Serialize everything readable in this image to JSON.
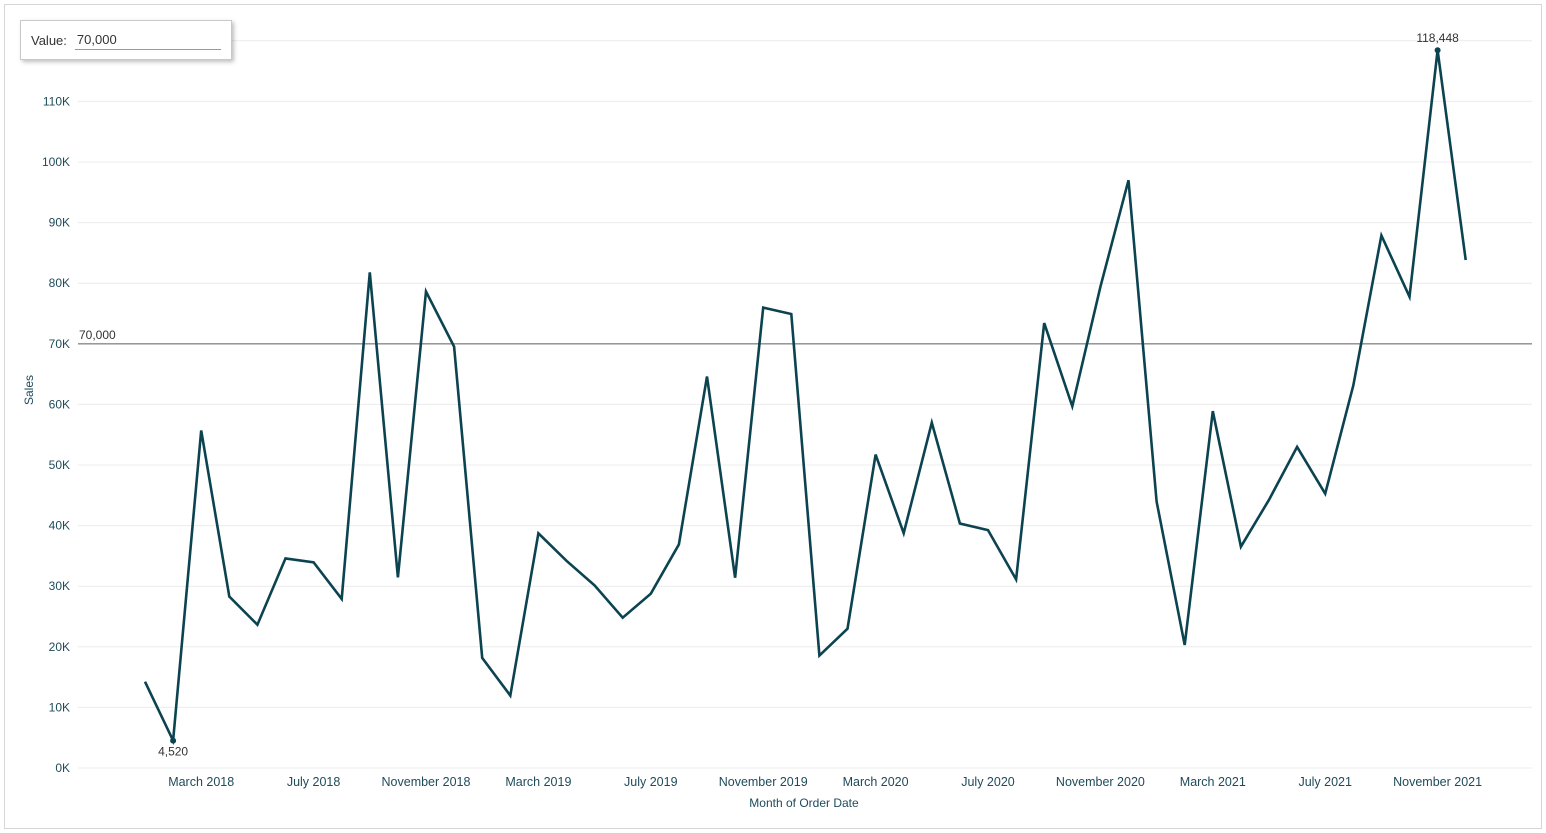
{
  "parameter": {
    "label": "Value:",
    "value": "70,000"
  },
  "colors": {
    "line": "#0c4350",
    "reference": "#8a8a8a",
    "grid": "#ececec",
    "text": "#1f4b5a"
  },
  "chart_data": {
    "type": "line",
    "title": "",
    "xlabel": "Month of Order Date",
    "ylabel": "Sales",
    "ylim": [
      0,
      120000
    ],
    "y_ticks": [
      {
        "value": 0,
        "label": "0K"
      },
      {
        "value": 10000,
        "label": "10K"
      },
      {
        "value": 20000,
        "label": "20K"
      },
      {
        "value": 30000,
        "label": "30K"
      },
      {
        "value": 40000,
        "label": "40K"
      },
      {
        "value": 50000,
        "label": "50K"
      },
      {
        "value": 60000,
        "label": "60K"
      },
      {
        "value": 70000,
        "label": "70K"
      },
      {
        "value": 80000,
        "label": "80K"
      },
      {
        "value": 90000,
        "label": "90K"
      },
      {
        "value": 100000,
        "label": "100K"
      },
      {
        "value": 110000,
        "label": "110K"
      }
    ],
    "x_ticks": [
      {
        "x": "2018-03",
        "label": "March 2018"
      },
      {
        "x": "2018-07",
        "label": "July 2018"
      },
      {
        "x": "2018-11",
        "label": "November 2018"
      },
      {
        "x": "2019-03",
        "label": "March 2019"
      },
      {
        "x": "2019-07",
        "label": "July 2019"
      },
      {
        "x": "2019-11",
        "label": "November 2019"
      },
      {
        "x": "2020-03",
        "label": "March 2020"
      },
      {
        "x": "2020-07",
        "label": "July 2020"
      },
      {
        "x": "2020-11",
        "label": "November 2020"
      },
      {
        "x": "2021-03",
        "label": "March 2021"
      },
      {
        "x": "2021-07",
        "label": "July 2021"
      },
      {
        "x": "2021-11",
        "label": "November 2021"
      }
    ],
    "x": [
      "2018-01",
      "2018-02",
      "2018-03",
      "2018-04",
      "2018-05",
      "2018-06",
      "2018-07",
      "2018-08",
      "2018-09",
      "2018-10",
      "2018-11",
      "2018-12",
      "2019-01",
      "2019-02",
      "2019-03",
      "2019-04",
      "2019-05",
      "2019-06",
      "2019-07",
      "2019-08",
      "2019-09",
      "2019-10",
      "2019-11",
      "2019-12",
      "2020-01",
      "2020-02",
      "2020-03",
      "2020-04",
      "2020-05",
      "2020-06",
      "2020-07",
      "2020-08",
      "2020-09",
      "2020-10",
      "2020-11",
      "2020-12",
      "2021-01",
      "2021-02",
      "2021-03",
      "2021-04",
      "2021-05",
      "2021-06",
      "2021-07",
      "2021-08",
      "2021-09",
      "2021-10",
      "2021-11",
      "2021-12"
    ],
    "series": [
      {
        "values": [
          14237,
          4520,
          55691,
          28295,
          23648,
          34595,
          33946,
          27909,
          81777,
          31453,
          78629,
          69546,
          18174,
          11951,
          38726,
          34195,
          30132,
          24797,
          28765,
          36898,
          64596,
          31405,
          75973,
          74920,
          18542,
          22979,
          51715,
          38751,
          56988,
          40344,
          39262,
          31115,
          73410,
          59688,
          79412,
          96999,
          43971,
          20301,
          58872,
          36522,
          44261,
          52981,
          45264,
          63121,
          87867,
          77777,
          118448,
          83829
        ]
      }
    ],
    "reference_line": {
      "value": 70000,
      "label": "70,000"
    },
    "point_labels": [
      {
        "x": "2018-02",
        "value": 4520,
        "label": "4,520",
        "position": "below"
      },
      {
        "x": "2021-11",
        "value": 118448,
        "label": "118,448",
        "position": "above"
      }
    ],
    "grid": true
  }
}
